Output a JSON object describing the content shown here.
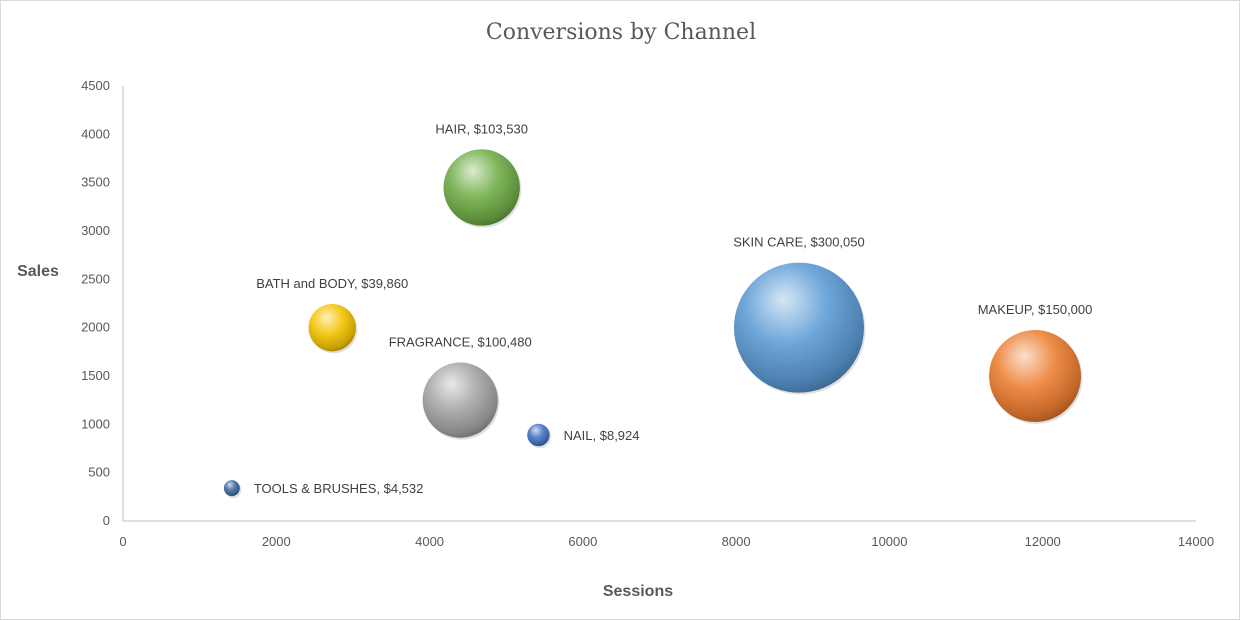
{
  "chart_data": {
    "type": "bubble",
    "title": "Conversions by Channel",
    "xlabel": "Sessions",
    "ylabel": "Sales",
    "xlim": [
      0,
      14000
    ],
    "ylim": [
      0,
      4500
    ],
    "x_ticks": [
      0,
      2000,
      4000,
      6000,
      8000,
      10000,
      12000,
      14000
    ],
    "y_ticks": [
      0,
      500,
      1000,
      1500,
      2000,
      2500,
      3000,
      3500,
      4000,
      4500
    ],
    "grid": false,
    "points": [
      {
        "name": "TOOLS & BRUSHES",
        "x": 1420,
        "y": 340,
        "size": 4532,
        "label": "TOOLS & BRUSHES, $4,532",
        "color": "#3f6b9e",
        "label_pos": "right"
      },
      {
        "name": "BATH and BODY",
        "x": 2730,
        "y": 2000,
        "size": 39860,
        "label": "BATH and BODY, $39,860",
        "color": "#f5c400",
        "label_pos": "above"
      },
      {
        "name": "HAIR",
        "x": 4680,
        "y": 3450,
        "size": 103530,
        "label": "HAIR, $103,530",
        "color": "#70ad47",
        "label_pos": "above"
      },
      {
        "name": "FRAGRANCE",
        "x": 4400,
        "y": 1250,
        "size": 100480,
        "label": "FRAGRANCE, $100,480",
        "color": "#a5a5a5",
        "label_pos": "above"
      },
      {
        "name": "NAIL",
        "x": 5420,
        "y": 890,
        "size": 8924,
        "label": "NAIL, $8,924",
        "color": "#4472c4",
        "label_pos": "right"
      },
      {
        "name": "SKIN CARE",
        "x": 8820,
        "y": 2000,
        "size": 300050,
        "label": "SKIN CARE, $300,050",
        "color": "#5b9bd5",
        "label_pos": "above"
      },
      {
        "name": "MAKEUP",
        "x": 11900,
        "y": 1500,
        "size": 150000,
        "label": "MAKEUP, $150,000",
        "color": "#ed7d31",
        "label_pos": "above"
      }
    ]
  }
}
